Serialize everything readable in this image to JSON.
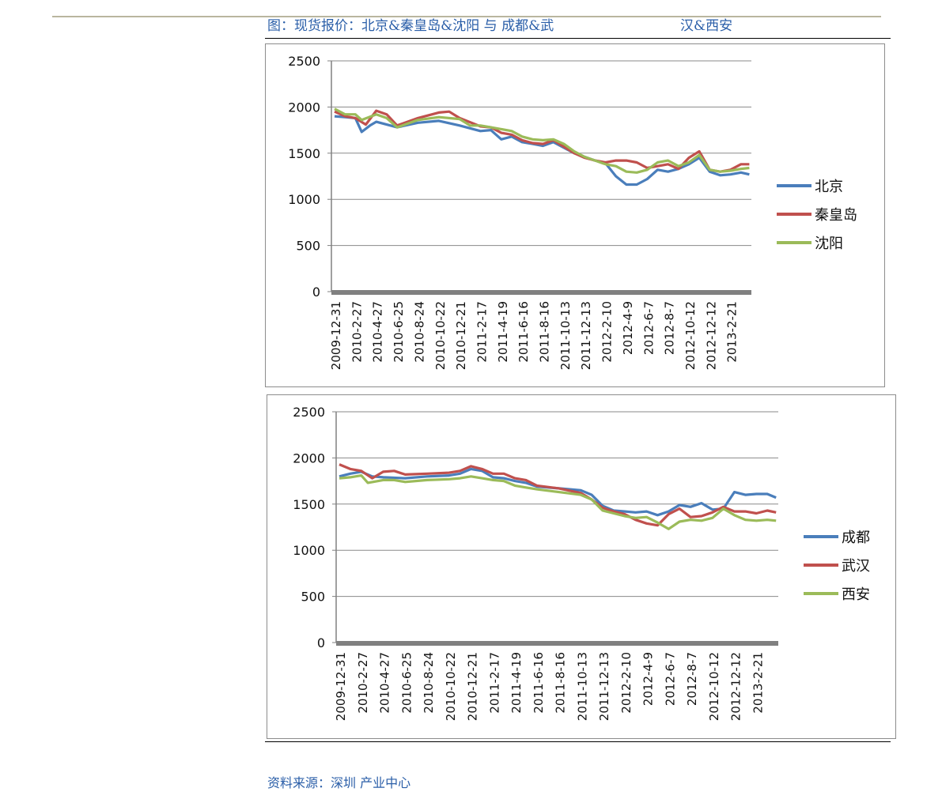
{
  "header": {
    "title_part1": "图：现货报价：北京&秦皇岛&沈阳 与 成都&武",
    "title_part2": "汉&西安"
  },
  "footer": {
    "source": "资料来源：深圳 产业中心"
  },
  "colors": {
    "blue": "#4a7ebb",
    "red": "#c0504d",
    "green": "#9bbb59",
    "grid": "#8a8a8a",
    "axis": "#808080"
  },
  "chart_data": [
    {
      "type": "line",
      "ylim": [
        0,
        2500
      ],
      "yticks": [
        0,
        500,
        1000,
        1500,
        2000,
        2500
      ],
      "grid": true,
      "legend": "right",
      "categories": [
        "2009-12-31",
        "2010-2-27",
        "2010-4-27",
        "2010-6-25",
        "2010-8-24",
        "2010-10-22",
        "2010-12-21",
        "2011-2-17",
        "2011-4-19",
        "2011-6-16",
        "2011-8-16",
        "2011-10-13",
        "2011-12-13",
        "2012-2-10",
        "2012-4-9",
        "2012-6-7",
        "2012-8-7",
        "2012-10-12",
        "2012-12-12",
        "2013-2-21"
      ],
      "series": [
        {
          "name": "北京",
          "color": "#4a7ebb",
          "points": [
            [
              0,
              1900
            ],
            [
              0.5,
              1890
            ],
            [
              1,
              1880
            ],
            [
              1.3,
              1730
            ],
            [
              1.7,
              1800
            ],
            [
              2,
              1840
            ],
            [
              3,
              1780
            ],
            [
              4,
              1830
            ],
            [
              5,
              1850
            ],
            [
              6,
              1800
            ],
            [
              7,
              1740
            ],
            [
              7.5,
              1750
            ],
            [
              8,
              1650
            ],
            [
              8.5,
              1680
            ],
            [
              9,
              1620
            ],
            [
              9.5,
              1600
            ],
            [
              10,
              1580
            ],
            [
              10.5,
              1620
            ],
            [
              11,
              1560
            ],
            [
              11.5,
              1500
            ],
            [
              12,
              1460
            ],
            [
              12.5,
              1420
            ],
            [
              13,
              1390
            ],
            [
              13.5,
              1250
            ],
            [
              14,
              1160
            ],
            [
              14.5,
              1160
            ],
            [
              15,
              1220
            ],
            [
              15.5,
              1320
            ],
            [
              16,
              1300
            ],
            [
              16.5,
              1330
            ],
            [
              17,
              1380
            ],
            [
              17.5,
              1450
            ],
            [
              18,
              1300
            ],
            [
              18.5,
              1260
            ],
            [
              19,
              1270
            ],
            [
              19.5,
              1290
            ],
            [
              19.9,
              1270
            ]
          ]
        },
        {
          "name": "秦皇岛",
          "color": "#c0504d",
          "points": [
            [
              0,
              1950
            ],
            [
              0.5,
              1900
            ],
            [
              1,
              1880
            ],
            [
              1.5,
              1810
            ],
            [
              2,
              1960
            ],
            [
              2.5,
              1920
            ],
            [
              3,
              1800
            ],
            [
              4,
              1880
            ],
            [
              5,
              1940
            ],
            [
              5.5,
              1950
            ],
            [
              6,
              1880
            ],
            [
              7,
              1790
            ],
            [
              7.5,
              1780
            ],
            [
              8,
              1720
            ],
            [
              8.5,
              1700
            ],
            [
              9,
              1640
            ],
            [
              9.5,
              1610
            ],
            [
              10,
              1600
            ],
            [
              10.5,
              1640
            ],
            [
              11,
              1570
            ],
            [
              11.5,
              1500
            ],
            [
              12,
              1450
            ],
            [
              12.5,
              1420
            ],
            [
              13,
              1400
            ],
            [
              13.5,
              1420
            ],
            [
              14,
              1420
            ],
            [
              14.5,
              1400
            ],
            [
              15,
              1340
            ],
            [
              15.5,
              1360
            ],
            [
              16,
              1380
            ],
            [
              16.5,
              1330
            ],
            [
              17,
              1450
            ],
            [
              17.5,
              1520
            ],
            [
              18,
              1320
            ],
            [
              18.5,
              1300
            ],
            [
              19,
              1320
            ],
            [
              19.5,
              1380
            ],
            [
              19.9,
              1380
            ]
          ]
        },
        {
          "name": "沈阳",
          "color": "#9bbb59",
          "points": [
            [
              0,
              1980
            ],
            [
              0.5,
              1920
            ],
            [
              1,
              1920
            ],
            [
              1.3,
              1860
            ],
            [
              2,
              1920
            ],
            [
              2.5,
              1880
            ],
            [
              3,
              1780
            ],
            [
              4,
              1860
            ],
            [
              5,
              1890
            ],
            [
              6,
              1870
            ],
            [
              6.5,
              1800
            ],
            [
              7,
              1800
            ],
            [
              7.5,
              1780
            ],
            [
              8,
              1760
            ],
            [
              8.5,
              1740
            ],
            [
              9,
              1680
            ],
            [
              9.5,
              1650
            ],
            [
              10,
              1640
            ],
            [
              10.5,
              1650
            ],
            [
              11,
              1600
            ],
            [
              11.5,
              1520
            ],
            [
              12,
              1460
            ],
            [
              12.5,
              1420
            ],
            [
              13,
              1380
            ],
            [
              13.5,
              1360
            ],
            [
              14,
              1300
            ],
            [
              14.5,
              1290
            ],
            [
              15,
              1320
            ],
            [
              15.5,
              1400
            ],
            [
              16,
              1420
            ],
            [
              16.5,
              1360
            ],
            [
              17,
              1400
            ],
            [
              17.5,
              1480
            ],
            [
              18,
              1320
            ],
            [
              18.5,
              1300
            ],
            [
              19,
              1310
            ],
            [
              19.5,
              1330
            ],
            [
              19.9,
              1340
            ]
          ]
        }
      ]
    },
    {
      "type": "line",
      "ylim": [
        0,
        2500
      ],
      "yticks": [
        0,
        500,
        1000,
        1500,
        2000,
        2500
      ],
      "grid": true,
      "legend": "right",
      "categories": [
        "2009-12-31",
        "2010-2-27",
        "2010-4-27",
        "2010-6-25",
        "2010-8-24",
        "2010-10-22",
        "2010-12-21",
        "2011-2-17",
        "2011-4-19",
        "2011-6-16",
        "2011-8-16",
        "2011-10-13",
        "2011-12-13",
        "2012-2-10",
        "2012-4-9",
        "2012-6-7",
        "2012-8-7",
        "2012-10-12",
        "2012-12-12",
        "2013-2-21"
      ],
      "series": [
        {
          "name": "成都",
          "color": "#4a7ebb",
          "points": [
            [
              0,
              1800
            ],
            [
              0.5,
              1830
            ],
            [
              1,
              1850
            ],
            [
              1.5,
              1800
            ],
            [
              2,
              1790
            ],
            [
              3,
              1780
            ],
            [
              4,
              1800
            ],
            [
              5,
              1810
            ],
            [
              5.5,
              1830
            ],
            [
              6,
              1880
            ],
            [
              6.5,
              1860
            ],
            [
              7,
              1790
            ],
            [
              7.5,
              1780
            ],
            [
              8,
              1750
            ],
            [
              8.5,
              1730
            ],
            [
              9,
              1690
            ],
            [
              10,
              1670
            ],
            [
              11,
              1650
            ],
            [
              11.5,
              1600
            ],
            [
              12,
              1480
            ],
            [
              12.5,
              1430
            ],
            [
              13,
              1420
            ],
            [
              13.5,
              1410
            ],
            [
              14,
              1420
            ],
            [
              14.5,
              1380
            ],
            [
              15,
              1420
            ],
            [
              15.5,
              1490
            ],
            [
              16,
              1470
            ],
            [
              16.5,
              1510
            ],
            [
              17,
              1440
            ],
            [
              17.5,
              1450
            ],
            [
              18,
              1630
            ],
            [
              18.5,
              1600
            ],
            [
              19,
              1610
            ],
            [
              19.5,
              1610
            ],
            [
              19.9,
              1570
            ]
          ]
        },
        {
          "name": "武汉",
          "color": "#c0504d",
          "points": [
            [
              0,
              1930
            ],
            [
              0.5,
              1880
            ],
            [
              1,
              1860
            ],
            [
              1.5,
              1780
            ],
            [
              2,
              1850
            ],
            [
              2.5,
              1860
            ],
            [
              3,
              1820
            ],
            [
              4,
              1830
            ],
            [
              5,
              1840
            ],
            [
              5.5,
              1860
            ],
            [
              6,
              1910
            ],
            [
              6.5,
              1880
            ],
            [
              7,
              1830
            ],
            [
              7.5,
              1830
            ],
            [
              8,
              1780
            ],
            [
              8.5,
              1760
            ],
            [
              9,
              1700
            ],
            [
              10,
              1670
            ],
            [
              11,
              1620
            ],
            [
              11.5,
              1550
            ],
            [
              12,
              1460
            ],
            [
              12.5,
              1420
            ],
            [
              13,
              1390
            ],
            [
              13.5,
              1330
            ],
            [
              14,
              1290
            ],
            [
              14.5,
              1270
            ],
            [
              15,
              1390
            ],
            [
              15.5,
              1450
            ],
            [
              16,
              1360
            ],
            [
              16.5,
              1370
            ],
            [
              17,
              1410
            ],
            [
              17.5,
              1470
            ],
            [
              18,
              1420
            ],
            [
              18.5,
              1420
            ],
            [
              19,
              1400
            ],
            [
              19.5,
              1430
            ],
            [
              19.9,
              1410
            ]
          ]
        },
        {
          "name": "西安",
          "color": "#9bbb59",
          "points": [
            [
              0,
              1780
            ],
            [
              0.5,
              1790
            ],
            [
              1,
              1810
            ],
            [
              1.3,
              1730
            ],
            [
              2,
              1760
            ],
            [
              2.5,
              1760
            ],
            [
              3,
              1740
            ],
            [
              4,
              1760
            ],
            [
              5,
              1770
            ],
            [
              5.5,
              1780
            ],
            [
              6,
              1800
            ],
            [
              6.5,
              1780
            ],
            [
              7,
              1760
            ],
            [
              7.5,
              1750
            ],
            [
              8,
              1700
            ],
            [
              8.5,
              1680
            ],
            [
              9,
              1660
            ],
            [
              10,
              1630
            ],
            [
              11,
              1600
            ],
            [
              11.5,
              1550
            ],
            [
              12,
              1430
            ],
            [
              12.5,
              1400
            ],
            [
              13,
              1370
            ],
            [
              13.5,
              1350
            ],
            [
              14,
              1360
            ],
            [
              14.5,
              1300
            ],
            [
              15,
              1230
            ],
            [
              15.5,
              1310
            ],
            [
              16,
              1330
            ],
            [
              16.5,
              1320
            ],
            [
              17,
              1350
            ],
            [
              17.5,
              1450
            ],
            [
              18,
              1380
            ],
            [
              18.5,
              1330
            ],
            [
              19,
              1320
            ],
            [
              19.5,
              1330
            ],
            [
              19.9,
              1320
            ]
          ]
        }
      ]
    }
  ]
}
